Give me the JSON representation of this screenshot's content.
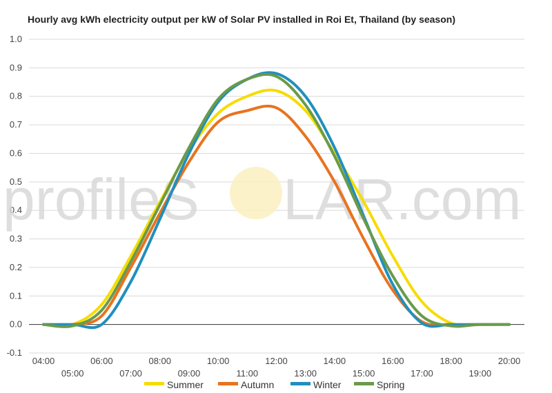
{
  "chart_data": {
    "type": "line",
    "title": "Hourly avg kWh electricity output per kW of Solar PV installed in Roi Et, Thailand (by season)",
    "xlabel": "",
    "ylabel": "",
    "ylim": [
      -0.1,
      1.0
    ],
    "yticks": [
      "-0.1",
      "0.0",
      "0.1",
      "0.2",
      "0.3",
      "0.4",
      "0.5",
      "0.6",
      "0.7",
      "0.8",
      "0.9",
      "1.0"
    ],
    "xlim": [
      4,
      20
    ],
    "xticks_upper": [
      "04:00",
      "06:00",
      "08:00",
      "10:00",
      "12:00",
      "14:00",
      "16:00",
      "18:00",
      "20:00"
    ],
    "xticks_lower": [
      "05:00",
      "07:00",
      "09:00",
      "11:00",
      "13:00",
      "15:00",
      "17:00",
      "19:00"
    ],
    "grid": true,
    "legend": "bottom",
    "x": [
      4,
      5,
      6,
      7,
      8,
      9,
      10,
      11,
      12,
      13,
      14,
      15,
      16,
      17,
      18,
      19,
      20
    ],
    "series": [
      {
        "name": "Summer",
        "color": "#f5dc00",
        "values": [
          0,
          0,
          0.07,
          0.24,
          0.43,
          0.61,
          0.74,
          0.8,
          0.82,
          0.75,
          0.6,
          0.43,
          0.24,
          0.08,
          0.005,
          0,
          0
        ]
      },
      {
        "name": "Autumn",
        "color": "#e8731f",
        "values": [
          0,
          0,
          0.03,
          0.2,
          0.39,
          0.57,
          0.71,
          0.75,
          0.76,
          0.66,
          0.5,
          0.3,
          0.12,
          0.01,
          0,
          0,
          0
        ]
      },
      {
        "name": "Winter",
        "color": "#1f8fbf",
        "values": [
          0,
          0,
          0,
          0.15,
          0.37,
          0.6,
          0.78,
          0.86,
          0.88,
          0.8,
          0.62,
          0.38,
          0.14,
          0.005,
          0,
          0,
          0
        ]
      },
      {
        "name": "Spring",
        "color": "#6a9a4a",
        "values": [
          0,
          -0.005,
          0.05,
          0.22,
          0.42,
          0.62,
          0.79,
          0.86,
          0.87,
          0.77,
          0.59,
          0.37,
          0.17,
          0.03,
          -0.005,
          0,
          0
        ]
      }
    ]
  },
  "watermark": {
    "left": "profileS",
    "right": "LAR.com"
  }
}
